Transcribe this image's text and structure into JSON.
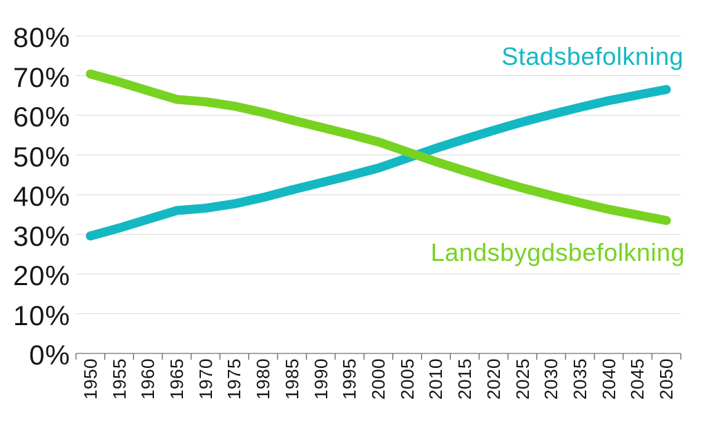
{
  "chart_data": {
    "type": "line",
    "title": "",
    "xlabel": "",
    "ylabel": "",
    "x": [
      1950,
      1955,
      1960,
      1965,
      1970,
      1975,
      1980,
      1985,
      1990,
      1995,
      2000,
      2005,
      2010,
      2015,
      2020,
      2025,
      2030,
      2035,
      2040,
      2045,
      2050
    ],
    "x_labels": [
      "1950",
      "1955",
      "1960",
      "1965",
      "1970",
      "1975",
      "1980",
      "1985",
      "1990",
      "1995",
      "2000",
      "2005",
      "2010",
      "2015",
      "2020",
      "2025",
      "2030",
      "2035",
      "2040",
      "2045",
      "2050"
    ],
    "series": [
      {
        "name": "Stadsbefolkning",
        "color": "#14b8c2",
        "values": [
          29.6,
          31.6,
          33.8,
          36.0,
          36.6,
          37.7,
          39.3,
          41.2,
          43.0,
          44.8,
          46.7,
          49.2,
          51.7,
          54.0,
          56.2,
          58.3,
          60.2,
          62.0,
          63.7,
          65.1,
          66.5
        ]
      },
      {
        "name": "Landsbygdsbefolkning",
        "color": "#77d221",
        "values": [
          70.4,
          68.4,
          66.2,
          64.0,
          63.4,
          62.3,
          60.7,
          58.8,
          57.0,
          55.2,
          53.3,
          50.8,
          48.3,
          46.0,
          43.8,
          41.7,
          39.8,
          38.0,
          36.3,
          34.9,
          33.5
        ]
      }
    ],
    "ylim": [
      0,
      80
    ],
    "y_tick_step": 10,
    "y_tick_labels": [
      "0%",
      "10%",
      "20%",
      "30%",
      "40%",
      "50%",
      "60%",
      "70%",
      "80%"
    ],
    "grid": "horizontal",
    "legend_position": "inline-annotations"
  },
  "colors": {
    "background": "#ffffff",
    "gridline": "#d9d9d9",
    "axis": "#8c8c8c",
    "tick": "#6e6e6e",
    "label_text": "#161616"
  }
}
